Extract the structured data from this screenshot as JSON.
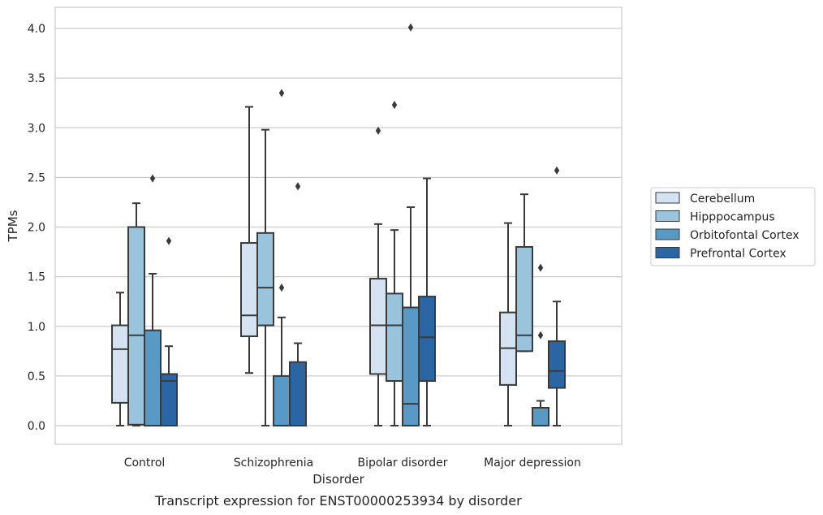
{
  "chart_data": {
    "type": "box",
    "title": "",
    "caption": "Transcript expression for ENST00000253934 by disorder",
    "xlabel": "Disorder",
    "ylabel": "TPMs",
    "ylim": [
      -0.2,
      4.22
    ],
    "yticks": [
      0.0,
      0.5,
      1.0,
      1.5,
      2.0,
      2.5,
      3.0,
      3.5,
      4.0
    ],
    "ytick_labels": [
      "0.0",
      "0.5",
      "1.0",
      "1.5",
      "2.0",
      "2.5",
      "3.0",
      "3.5",
      "4.0"
    ],
    "grid": true,
    "legend_position": "right",
    "categories": [
      "Control",
      "Schizophrenia",
      "Bipolar disorder",
      "Major depression"
    ],
    "series": [
      {
        "name": "Cerebellum",
        "color": "#d4e2f1",
        "boxes": [
          {
            "whislo": 0.0,
            "q1": 0.23,
            "med": 0.77,
            "q3": 1.01,
            "whishi": 1.34,
            "fliers": []
          },
          {
            "whislo": 0.53,
            "q1": 0.9,
            "med": 1.11,
            "q3": 1.84,
            "whishi": 3.21,
            "fliers": []
          },
          {
            "whislo": 0.0,
            "q1": 0.52,
            "med": 1.01,
            "q3": 1.48,
            "whishi": 2.03,
            "fliers": [
              2.97
            ]
          },
          {
            "whislo": 0.0,
            "q1": 0.41,
            "med": 0.78,
            "q3": 1.14,
            "whishi": 2.04,
            "fliers": []
          }
        ]
      },
      {
        "name": "Hipppocampus",
        "color": "#9ac4dd",
        "boxes": [
          {
            "whislo": 0.0,
            "q1": 0.01,
            "med": 0.91,
            "q3": 2.0,
            "whishi": 2.24,
            "fliers": []
          },
          {
            "whislo": 0.0,
            "q1": 1.01,
            "med": 1.39,
            "q3": 1.94,
            "whishi": 2.98,
            "fliers": []
          },
          {
            "whislo": 0.0,
            "q1": 0.45,
            "med": 1.01,
            "q3": 1.33,
            "whishi": 1.97,
            "fliers": [
              3.23
            ]
          },
          {
            "whislo": 0.75,
            "q1": 0.75,
            "med": 0.91,
            "q3": 1.8,
            "whishi": 2.33,
            "fliers": []
          }
        ]
      },
      {
        "name": "Orbitofontal Cortex",
        "color": "#5899c6",
        "boxes": [
          {
            "whislo": 0.0,
            "q1": 0.0,
            "med": 0.0,
            "q3": 0.96,
            "whishi": 1.53,
            "fliers": [
              2.49
            ]
          },
          {
            "whislo": 0.0,
            "q1": 0.0,
            "med": 0.0,
            "q3": 0.5,
            "whishi": 1.09,
            "fliers": [
              1.39,
              3.35
            ]
          },
          {
            "whislo": 0.0,
            "q1": 0.0,
            "med": 0.22,
            "q3": 1.19,
            "whishi": 2.2,
            "fliers": [
              4.01
            ]
          },
          {
            "whislo": 0.0,
            "q1": 0.0,
            "med": 0.0,
            "q3": 0.18,
            "whishi": 0.25,
            "fliers": [
              0.91,
              1.59
            ]
          }
        ]
      },
      {
        "name": "Prefrontal Cortex",
        "color": "#2a66a4",
        "boxes": [
          {
            "whislo": 0.0,
            "q1": 0.0,
            "med": 0.45,
            "q3": 0.52,
            "whishi": 0.8,
            "fliers": [
              1.86
            ]
          },
          {
            "whislo": 0.0,
            "q1": 0.0,
            "med": 0.0,
            "q3": 0.64,
            "whishi": 0.83,
            "fliers": [
              2.41
            ]
          },
          {
            "whislo": 0.0,
            "q1": 0.45,
            "med": 0.89,
            "q3": 1.3,
            "whishi": 2.49,
            "fliers": []
          },
          {
            "whislo": 0.0,
            "q1": 0.38,
            "med": 0.55,
            "q3": 0.85,
            "whishi": 1.25,
            "fliers": [
              2.57
            ]
          }
        ]
      }
    ]
  }
}
